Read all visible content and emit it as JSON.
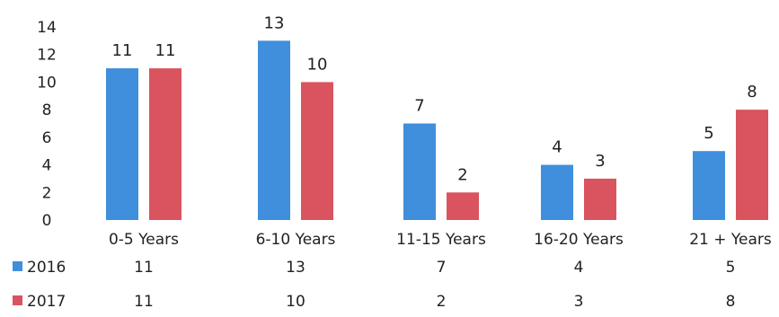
{
  "chart_data": {
    "type": "bar",
    "categories": [
      "0-5 Years",
      "6-10 Years",
      "11-15 Years",
      "16-20 Years",
      "21 + Years"
    ],
    "series": [
      {
        "name": "2016",
        "values": [
          11,
          13,
          7,
          4,
          5
        ],
        "color": "#3f8fdc"
      },
      {
        "name": "2017",
        "values": [
          11,
          10,
          2,
          3,
          8
        ],
        "color": "#d9545e"
      }
    ],
    "ylim": [
      0,
      14
    ],
    "yticks": [
      "0",
      "2",
      "4",
      "6",
      "8",
      "10",
      "12",
      "14"
    ],
    "grid": false,
    "data_table": true
  }
}
